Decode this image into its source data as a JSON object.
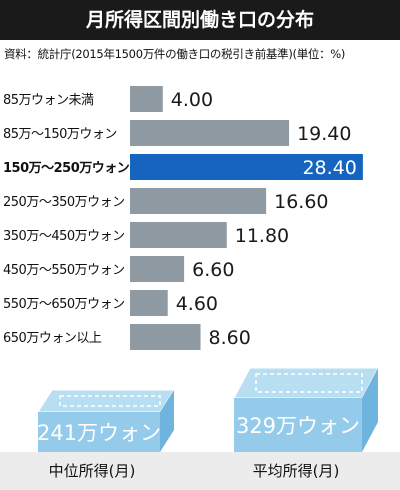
{
  "title": "月所得区間別働き口の分布",
  "source": "資料：統計庁(2015年1500万件の働き口の税引き前基準)(単位：%)",
  "chart_data": {
    "type": "bar",
    "orientation": "horizontal",
    "categories": [
      "85万ウォン未満",
      "85万〜150万ウォン",
      "150万〜250万ウォン",
      "250万〜350万ウォン",
      "350万〜450万ウォン",
      "450万〜550万ウォン",
      "550万〜650万ウォン",
      "650万ウォン以上"
    ],
    "values": [
      4.0,
      19.4,
      28.4,
      16.6,
      11.8,
      6.6,
      4.6,
      8.6
    ],
    "value_labels": [
      "4.00",
      "19.40",
      "28.40",
      "16.60",
      "11.80",
      "6.60",
      "4.60",
      "8.60"
    ],
    "highlight_index": 2,
    "xlim": [
      0,
      30
    ],
    "colors": {
      "bar": "#8f9aa2",
      "highlight": "#1565c0",
      "label": "#1a1a1a",
      "highlight_label": "#ffffff"
    }
  },
  "summary": [
    {
      "label": "中位所得(月)",
      "value": "241万ウォン"
    },
    {
      "label": "平均所得(月)",
      "value": "329万ウォン"
    }
  ]
}
